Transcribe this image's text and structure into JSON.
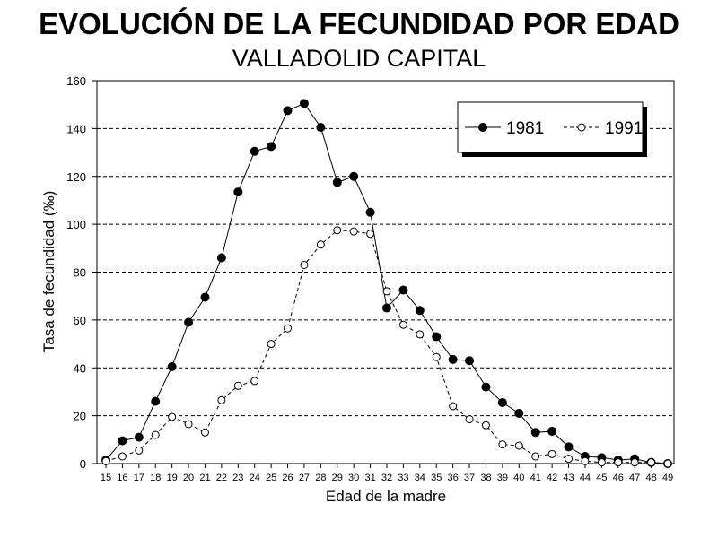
{
  "chart_data": {
    "type": "line",
    "title": "EVOLUCIÓN DE LA FECUNDIDAD POR EDAD",
    "subtitle": "VALLADOLID CAPITAL",
    "xlabel": "Edad de la madre",
    "ylabel": "Tasa de fecundidad (‰)",
    "ylim": [
      0,
      160
    ],
    "yticks": [
      0,
      20,
      40,
      60,
      80,
      100,
      120,
      140,
      160
    ],
    "grid": "horizontal-dashed",
    "legend_position": "top-right",
    "x": [
      15,
      16,
      17,
      18,
      19,
      20,
      21,
      22,
      23,
      24,
      25,
      26,
      27,
      28,
      29,
      30,
      31,
      32,
      33,
      34,
      35,
      36,
      37,
      38,
      39,
      40,
      41,
      42,
      43,
      44,
      45,
      46,
      47,
      48,
      49
    ],
    "series": [
      {
        "name": "1981",
        "marker": "filled-circle",
        "line": "solid",
        "color": "#000000",
        "values": [
          1.5,
          9.5,
          11,
          26,
          40.5,
          59,
          69.5,
          86,
          113.5,
          130.5,
          132.5,
          147.5,
          150.5,
          140.5,
          117.5,
          120,
          105,
          65,
          72.5,
          64,
          53,
          43.5,
          43,
          32,
          25.5,
          21,
          13,
          13.5,
          7,
          3,
          2.5,
          1.5,
          2,
          0.5,
          0
        ]
      },
      {
        "name": "1991",
        "marker": "open-circle",
        "line": "dashed",
        "color": "#000000",
        "values": [
          1,
          3,
          5.5,
          12,
          19.5,
          16.5,
          13,
          26.5,
          32.5,
          34.5,
          50,
          56.5,
          83,
          91.5,
          97.5,
          97,
          96,
          72,
          58,
          54,
          44.5,
          24,
          18.5,
          16,
          8,
          7.5,
          3,
          4,
          2,
          1,
          0.5,
          0.5,
          0.5,
          0.5,
          0
        ]
      }
    ]
  }
}
